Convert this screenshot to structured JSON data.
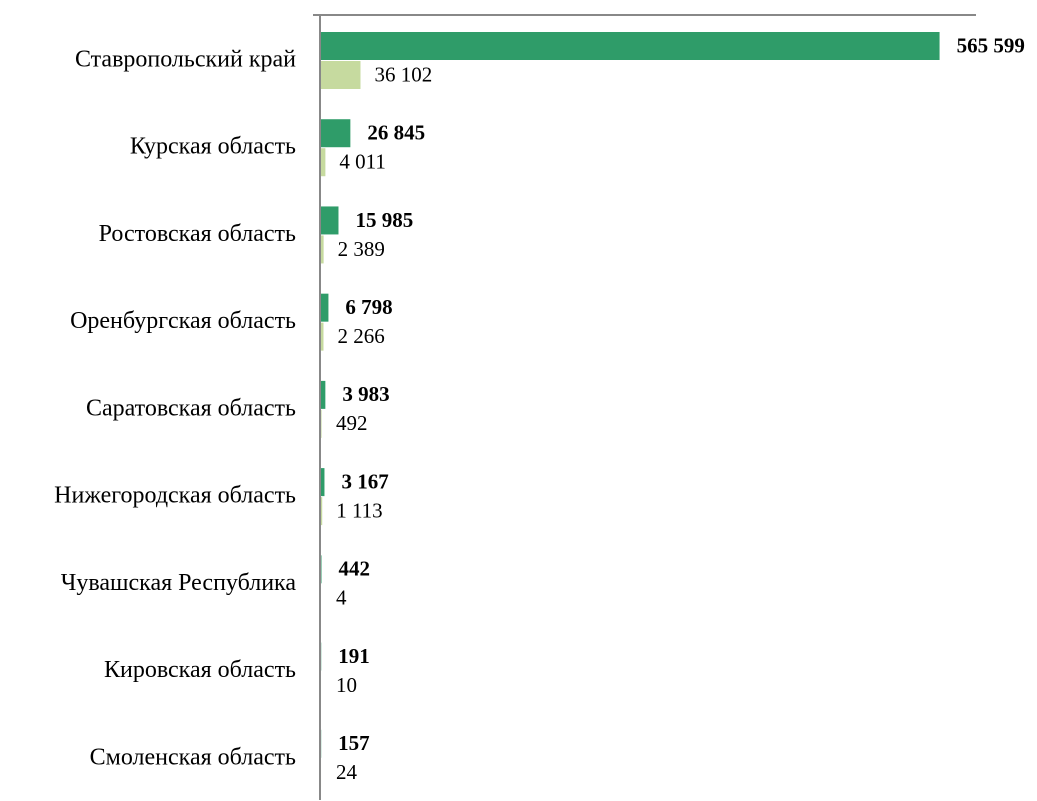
{
  "chart_data": {
    "type": "hbar",
    "categories": [
      "Ставропольский край",
      "Курская область",
      "Ростовская область",
      "Оренбургская область",
      "Саратовская область",
      "Нижегородская область",
      "Чувашская Республика",
      "Кировская область",
      "Смоленская область"
    ],
    "series": [
      {
        "color": "#2f9c69",
        "bold": true,
        "values": [
          565599,
          26845,
          15985,
          6798,
          3983,
          3167,
          442,
          191,
          157
        ],
        "value_labels": [
          "565 599",
          "26 845",
          "15 985",
          "6 798",
          "3 983",
          "3 167",
          "442",
          "191",
          "157"
        ]
      },
      {
        "color": "#c6da9f",
        "bold": false,
        "values": [
          36102,
          4011,
          2389,
          2266,
          492,
          1113,
          4,
          10,
          24
        ],
        "value_labels": [
          "36 102",
          "4 011",
          "2 389",
          "2 266",
          "492",
          "1 113",
          "4",
          "10",
          "24"
        ]
      }
    ],
    "xlim": [
      0,
      598000
    ]
  }
}
